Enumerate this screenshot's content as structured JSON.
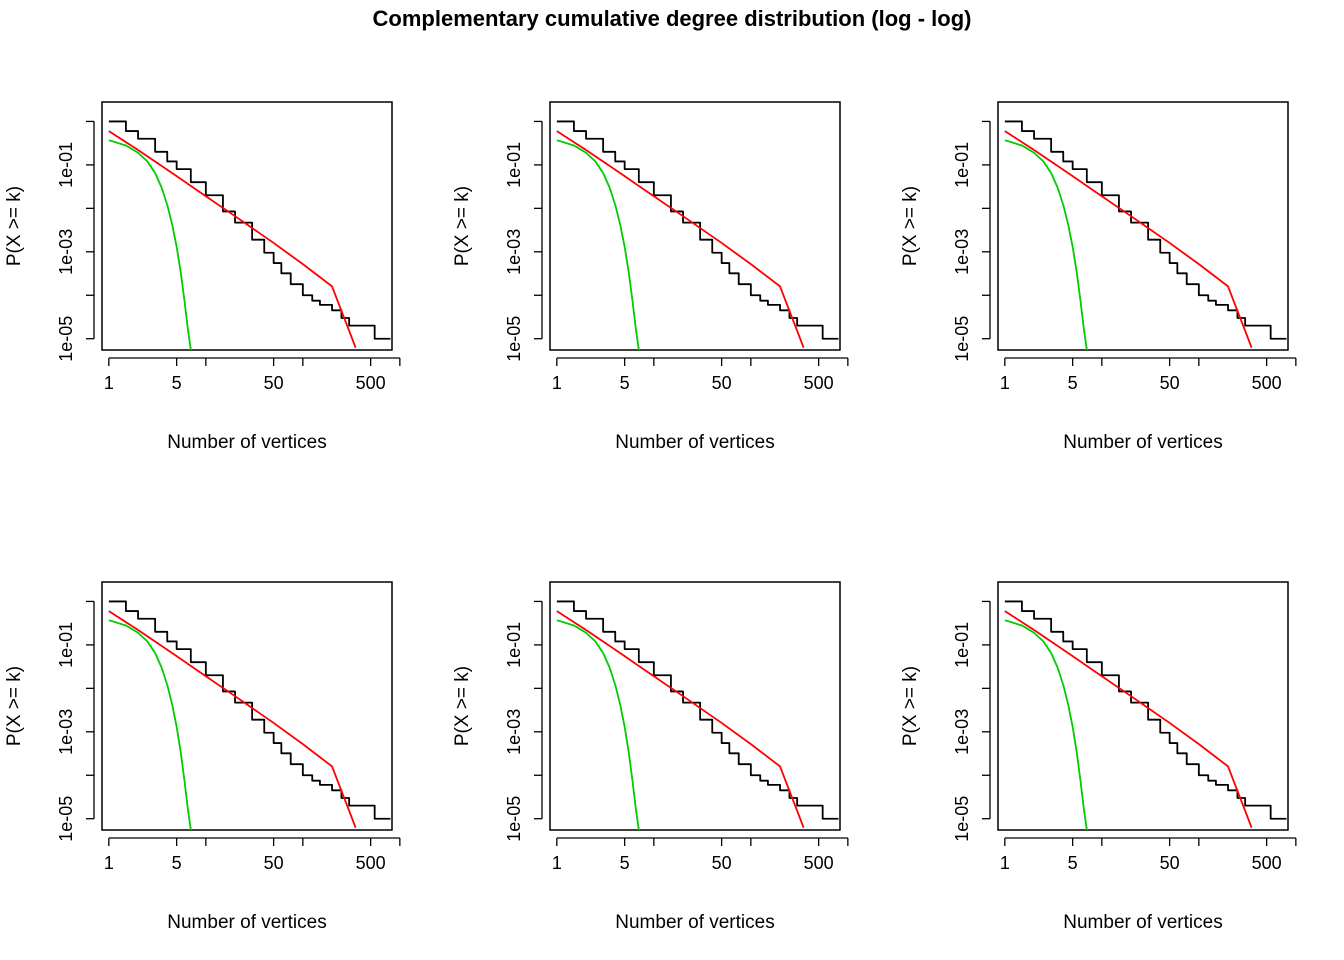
{
  "figure": {
    "title": "Complementary cumulative degree distribution (log - log)"
  },
  "colors": {
    "empirical": "#000000",
    "power_law": "#ff0000",
    "poisson": "#00cc00",
    "axis": "#000000"
  },
  "chart_data": [
    {
      "type": "line",
      "xlabel": "Number of vertices",
      "ylabel": "P(X >= k)",
      "xscale": "log",
      "yscale": "log",
      "xlim": [
        0.85,
        830
      ],
      "ylim": [
        5.5e-06,
        2.8
      ],
      "xticks": [
        1,
        5,
        50,
        500
      ],
      "xticks_minor": [
        1,
        5,
        10,
        50,
        100,
        500,
        1000
      ],
      "yticks": [
        "1e-01",
        "1e-03",
        "1e-05"
      ],
      "yticks_minor": [
        1e-05,
        0.0001,
        0.001,
        0.01,
        0.1,
        1
      ],
      "series": [
        {
          "style": "step",
          "color": "black",
          "x": [
            1,
            1.5,
            2,
            3,
            4,
            5,
            7,
            10,
            15,
            20,
            30,
            40,
            50,
            60,
            75,
            100,
            125,
            150,
            200,
            250,
            300,
            400,
            550,
            800
          ],
          "y": [
            1.0,
            0.6,
            0.4,
            0.2,
            0.12,
            0.08,
            0.04,
            0.02,
            0.0085,
            0.0047,
            0.0019,
            0.00095,
            0.00055,
            0.00032,
            0.00018,
            0.0001,
            7.5e-05,
            6e-05,
            4.5e-05,
            3e-05,
            2e-05,
            2e-05,
            1e-05,
            1e-05
          ]
        },
        {
          "style": "line",
          "color": "red",
          "x": [
            1,
            2,
            3,
            5,
            10,
            20,
            50,
            100,
            200,
            350
          ],
          "y": [
            0.6,
            0.22,
            0.12,
            0.055,
            0.019,
            0.0066,
            0.0016,
            0.00052,
            0.00016,
            6.2e-06
          ]
        },
        {
          "style": "line",
          "color": "green",
          "x": [
            1,
            1.5,
            2,
            2.5,
            3,
            3.5,
            4,
            4.5,
            5,
            5.5,
            6,
            6.5,
            7
          ],
          "y": [
            0.37,
            0.28,
            0.19,
            0.12,
            0.065,
            0.03,
            0.012,
            0.0042,
            0.0013,
            0.00035,
            8e-05,
            1.8e-05,
            5.5e-06
          ]
        }
      ]
    },
    {
      "type": "line",
      "xlabel": "Number of vertices",
      "ylabel": "P(X >= k)",
      "xscale": "log",
      "yscale": "log",
      "xlim": [
        0.85,
        830
      ],
      "ylim": [
        5.5e-06,
        2.8
      ],
      "xticks": [
        1,
        5,
        50,
        500
      ],
      "xticks_minor": [
        1,
        5,
        10,
        50,
        100,
        500,
        1000
      ],
      "yticks": [
        "1e-01",
        "1e-03",
        "1e-05"
      ],
      "yticks_minor": [
        1e-05,
        0.0001,
        0.001,
        0.01,
        0.1,
        1
      ],
      "series": [
        {
          "style": "step",
          "color": "black",
          "x": [
            1,
            1.5,
            2,
            3,
            4,
            5,
            7,
            10,
            15,
            20,
            30,
            40,
            50,
            60,
            75,
            100,
            125,
            150,
            200,
            250,
            300,
            400,
            550,
            800
          ],
          "y": [
            1.0,
            0.6,
            0.4,
            0.2,
            0.12,
            0.08,
            0.04,
            0.02,
            0.0085,
            0.0047,
            0.0019,
            0.00095,
            0.00055,
            0.00032,
            0.00018,
            0.0001,
            7.5e-05,
            6e-05,
            4.5e-05,
            3e-05,
            2e-05,
            2e-05,
            1e-05,
            1e-05
          ]
        },
        {
          "style": "line",
          "color": "red",
          "x": [
            1,
            2,
            3,
            5,
            10,
            20,
            50,
            100,
            200,
            350
          ],
          "y": [
            0.6,
            0.22,
            0.12,
            0.055,
            0.019,
            0.0066,
            0.0016,
            0.00052,
            0.00016,
            6.2e-06
          ]
        },
        {
          "style": "line",
          "color": "green",
          "x": [
            1,
            1.5,
            2,
            2.5,
            3,
            3.5,
            4,
            4.5,
            5,
            5.5,
            6,
            6.5,
            7
          ],
          "y": [
            0.37,
            0.28,
            0.19,
            0.12,
            0.065,
            0.03,
            0.012,
            0.0042,
            0.0013,
            0.00035,
            8e-05,
            1.8e-05,
            5.5e-06
          ]
        }
      ]
    },
    {
      "type": "line",
      "xlabel": "Number of vertices",
      "ylabel": "P(X >= k)",
      "xscale": "log",
      "yscale": "log",
      "xlim": [
        0.85,
        830
      ],
      "ylim": [
        5.5e-06,
        2.8
      ],
      "xticks": [
        1,
        5,
        50,
        500
      ],
      "xticks_minor": [
        1,
        5,
        10,
        50,
        100,
        500,
        1000
      ],
      "yticks": [
        "1e-01",
        "1e-03",
        "1e-05"
      ],
      "yticks_minor": [
        1e-05,
        0.0001,
        0.001,
        0.01,
        0.1,
        1
      ],
      "series": [
        {
          "style": "step",
          "color": "black",
          "x": [
            1,
            1.5,
            2,
            3,
            4,
            5,
            7,
            10,
            15,
            20,
            30,
            40,
            50,
            60,
            75,
            100,
            125,
            150,
            200,
            250,
            300,
            400,
            550,
            800
          ],
          "y": [
            1.0,
            0.6,
            0.4,
            0.2,
            0.12,
            0.08,
            0.04,
            0.02,
            0.0085,
            0.0047,
            0.0019,
            0.00095,
            0.00055,
            0.00032,
            0.00018,
            0.0001,
            7.5e-05,
            6e-05,
            4.5e-05,
            3e-05,
            2e-05,
            2e-05,
            1e-05,
            1e-05
          ]
        },
        {
          "style": "line",
          "color": "red",
          "x": [
            1,
            2,
            3,
            5,
            10,
            20,
            50,
            100,
            200,
            350
          ],
          "y": [
            0.6,
            0.22,
            0.12,
            0.055,
            0.019,
            0.0066,
            0.0016,
            0.00052,
            0.00016,
            6.2e-06
          ]
        },
        {
          "style": "line",
          "color": "green",
          "x": [
            1,
            1.5,
            2,
            2.5,
            3,
            3.5,
            4,
            4.5,
            5,
            5.5,
            6,
            6.5,
            7
          ],
          "y": [
            0.37,
            0.28,
            0.19,
            0.12,
            0.065,
            0.03,
            0.012,
            0.0042,
            0.0013,
            0.00035,
            8e-05,
            1.8e-05,
            5.5e-06
          ]
        }
      ]
    },
    {
      "type": "line",
      "xlabel": "Number of vertices",
      "ylabel": "P(X >= k)",
      "xscale": "log",
      "yscale": "log",
      "xlim": [
        0.85,
        830
      ],
      "ylim": [
        5.5e-06,
        2.8
      ],
      "xticks": [
        1,
        5,
        50,
        500
      ],
      "xticks_minor": [
        1,
        5,
        10,
        50,
        100,
        500,
        1000
      ],
      "yticks": [
        "1e-01",
        "1e-03",
        "1e-05"
      ],
      "yticks_minor": [
        1e-05,
        0.0001,
        0.001,
        0.01,
        0.1,
        1
      ],
      "series": [
        {
          "style": "step",
          "color": "black",
          "x": [
            1,
            1.5,
            2,
            3,
            4,
            5,
            7,
            10,
            15,
            20,
            30,
            40,
            50,
            60,
            75,
            100,
            125,
            150,
            200,
            250,
            300,
            400,
            550,
            800
          ],
          "y": [
            1.0,
            0.6,
            0.4,
            0.2,
            0.12,
            0.08,
            0.04,
            0.02,
            0.0085,
            0.0047,
            0.0019,
            0.00095,
            0.00055,
            0.00032,
            0.00018,
            0.0001,
            7.5e-05,
            6e-05,
            4.5e-05,
            3e-05,
            2e-05,
            2e-05,
            1e-05,
            1e-05
          ]
        },
        {
          "style": "line",
          "color": "red",
          "x": [
            1,
            2,
            3,
            5,
            10,
            20,
            50,
            100,
            200,
            350
          ],
          "y": [
            0.6,
            0.22,
            0.12,
            0.055,
            0.019,
            0.0066,
            0.0016,
            0.00052,
            0.00016,
            6.2e-06
          ]
        },
        {
          "style": "line",
          "color": "green",
          "x": [
            1,
            1.5,
            2,
            2.5,
            3,
            3.5,
            4,
            4.5,
            5,
            5.5,
            6,
            6.5,
            7
          ],
          "y": [
            0.37,
            0.28,
            0.19,
            0.12,
            0.065,
            0.03,
            0.012,
            0.0042,
            0.0013,
            0.00035,
            8e-05,
            1.8e-05,
            5.5e-06
          ]
        }
      ]
    },
    {
      "type": "line",
      "xlabel": "Number of vertices",
      "ylabel": "P(X >= k)",
      "xscale": "log",
      "yscale": "log",
      "xlim": [
        0.85,
        830
      ],
      "ylim": [
        5.5e-06,
        2.8
      ],
      "xticks": [
        1,
        5,
        50,
        500
      ],
      "xticks_minor": [
        1,
        5,
        10,
        50,
        100,
        500,
        1000
      ],
      "yticks": [
        "1e-01",
        "1e-03",
        "1e-05"
      ],
      "yticks_minor": [
        1e-05,
        0.0001,
        0.001,
        0.01,
        0.1,
        1
      ],
      "series": [
        {
          "style": "step",
          "color": "black",
          "x": [
            1,
            1.5,
            2,
            3,
            4,
            5,
            7,
            10,
            15,
            20,
            30,
            40,
            50,
            60,
            75,
            100,
            125,
            150,
            200,
            250,
            300,
            400,
            550,
            800
          ],
          "y": [
            1.0,
            0.6,
            0.4,
            0.2,
            0.12,
            0.08,
            0.04,
            0.02,
            0.0085,
            0.0047,
            0.0019,
            0.00095,
            0.00055,
            0.00032,
            0.00018,
            0.0001,
            7.5e-05,
            6e-05,
            4.5e-05,
            3e-05,
            2e-05,
            2e-05,
            1e-05,
            1e-05
          ]
        },
        {
          "style": "line",
          "color": "red",
          "x": [
            1,
            2,
            3,
            5,
            10,
            20,
            50,
            100,
            200,
            350
          ],
          "y": [
            0.6,
            0.22,
            0.12,
            0.055,
            0.019,
            0.0066,
            0.0016,
            0.00052,
            0.00016,
            6.2e-06
          ]
        },
        {
          "style": "line",
          "color": "green",
          "x": [
            1,
            1.5,
            2,
            2.5,
            3,
            3.5,
            4,
            4.5,
            5,
            5.5,
            6,
            6.5,
            7
          ],
          "y": [
            0.37,
            0.28,
            0.19,
            0.12,
            0.065,
            0.03,
            0.012,
            0.0042,
            0.0013,
            0.00035,
            8e-05,
            1.8e-05,
            5.5e-06
          ]
        }
      ]
    },
    {
      "type": "line",
      "xlabel": "Number of vertices",
      "ylabel": "P(X >= k)",
      "xscale": "log",
      "yscale": "log",
      "xlim": [
        0.85,
        830
      ],
      "ylim": [
        5.5e-06,
        2.8
      ],
      "xticks": [
        1,
        5,
        50,
        500
      ],
      "xticks_minor": [
        1,
        5,
        10,
        50,
        100,
        500,
        1000
      ],
      "yticks": [
        "1e-01",
        "1e-03",
        "1e-05"
      ],
      "yticks_minor": [
        1e-05,
        0.0001,
        0.001,
        0.01,
        0.1,
        1
      ],
      "series": [
        {
          "style": "step",
          "color": "black",
          "x": [
            1,
            1.5,
            2,
            3,
            4,
            5,
            7,
            10,
            15,
            20,
            30,
            40,
            50,
            60,
            75,
            100,
            125,
            150,
            200,
            250,
            300,
            400,
            550,
            800
          ],
          "y": [
            1.0,
            0.6,
            0.4,
            0.2,
            0.12,
            0.08,
            0.04,
            0.02,
            0.0085,
            0.0047,
            0.0019,
            0.00095,
            0.00055,
            0.00032,
            0.00018,
            0.0001,
            7.5e-05,
            6e-05,
            4.5e-05,
            3e-05,
            2e-05,
            2e-05,
            1e-05,
            1e-05
          ]
        },
        {
          "style": "line",
          "color": "red",
          "x": [
            1,
            2,
            3,
            5,
            10,
            20,
            50,
            100,
            200,
            350
          ],
          "y": [
            0.6,
            0.22,
            0.12,
            0.055,
            0.019,
            0.0066,
            0.0016,
            0.00052,
            0.00016,
            6.2e-06
          ]
        },
        {
          "style": "line",
          "color": "green",
          "x": [
            1,
            1.5,
            2,
            2.5,
            3,
            3.5,
            4,
            4.5,
            5,
            5.5,
            6,
            6.5,
            7
          ],
          "y": [
            0.37,
            0.28,
            0.19,
            0.12,
            0.065,
            0.03,
            0.012,
            0.0042,
            0.0013,
            0.00035,
            8e-05,
            1.8e-05,
            5.5e-06
          ]
        }
      ]
    }
  ]
}
